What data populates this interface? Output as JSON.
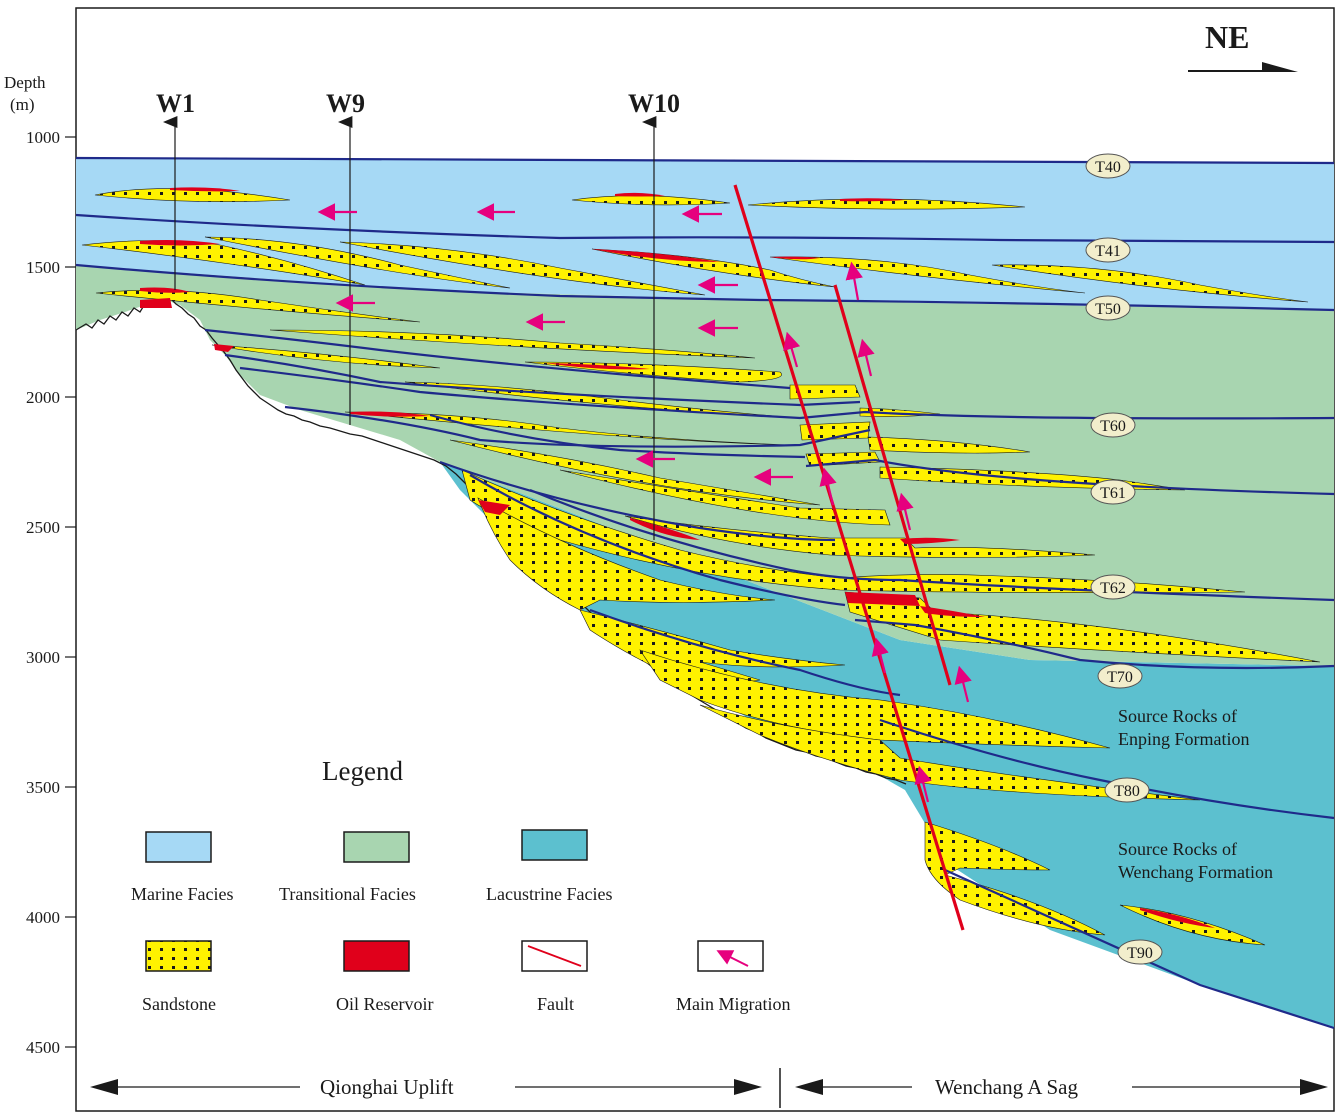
{
  "depth_axis": {
    "label_line1": "Depth",
    "label_line2": "(m)",
    "ticks": [
      "1000",
      "1500",
      "2000",
      "2500",
      "3000",
      "3500",
      "4000",
      "4500"
    ]
  },
  "direction": "NE",
  "wells": [
    "W1",
    "W9",
    "W10"
  ],
  "horizons": [
    "T40",
    "T41",
    "T50",
    "T60",
    "T61",
    "T62",
    "T70",
    "T80",
    "T90"
  ],
  "annotations": {
    "enping_line1": "Source  Rocks of",
    "enping_line2": "Enping Formation",
    "wenchang_line1": "Source  Rocks of",
    "wenchang_line2": "Wenchang Formation"
  },
  "legend": {
    "title": "Legend",
    "items": [
      {
        "label": "Marine Facies",
        "color": "#a6d9f5"
      },
      {
        "label": "Transitional Facies",
        "color": "#a8d5b0"
      },
      {
        "label": "Lacustrine Facies",
        "color": "#5cc0cf"
      },
      {
        "label": "Sandstone",
        "color": "#fff200"
      },
      {
        "label": "Oil Reservoir",
        "color": "#e0001b"
      },
      {
        "label": "Fault",
        "color": "#e0001b"
      },
      {
        "label": "Main Migration",
        "color": "#e6007e"
      }
    ]
  },
  "regions": [
    "Qionghai Uplift",
    "Wenchang A Sag"
  ],
  "colors": {
    "marine": "#a6d9f5",
    "transitional": "#a8d5b0",
    "lacustrine": "#5cc0cf",
    "sand": "#fff200",
    "oil": "#e0001b",
    "horizon_line": "#1f2a8a",
    "fault": "#e0001b",
    "arrow": "#e6007e"
  }
}
